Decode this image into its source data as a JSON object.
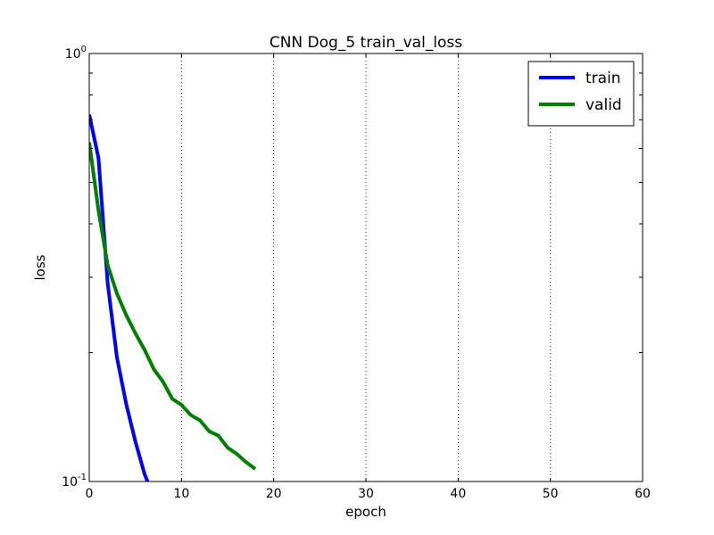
{
  "chart_data": {
    "type": "line",
    "title": "CNN Dog_5 train_val_loss",
    "xlabel": "epoch",
    "ylabel": "loss",
    "xlim": [
      0,
      60
    ],
    "ylim": [
      0.1,
      1.0
    ],
    "yscale": "log",
    "xticks": [
      0,
      10,
      20,
      30,
      40,
      50,
      60
    ],
    "xtick_labels": [
      "0",
      "10",
      "20",
      "30",
      "40",
      "50",
      "60"
    ],
    "yticks": [
      {
        "value": 0.1,
        "base": "10",
        "exp": "-1"
      },
      {
        "value": 1.0,
        "base": "10",
        "exp": "0"
      }
    ],
    "grid": "vertical dotted",
    "legend_position": "top-right",
    "series": [
      {
        "name": "train",
        "color": "#0000ff",
        "x": [
          0,
          1,
          2,
          3,
          4,
          5,
          6,
          7
        ],
        "y": [
          0.72,
          0.57,
          0.29,
          0.195,
          0.152,
          0.124,
          0.104,
          0.092
        ]
      },
      {
        "name": "valid",
        "color": "#008000",
        "x": [
          0,
          1,
          2,
          3,
          4,
          5,
          6,
          7,
          8,
          9,
          10,
          11,
          12,
          13,
          14,
          15,
          16,
          17,
          18
        ],
        "y": [
          0.62,
          0.43,
          0.32,
          0.275,
          0.245,
          0.222,
          0.203,
          0.183,
          0.171,
          0.156,
          0.151,
          0.143,
          0.139,
          0.131,
          0.128,
          0.12,
          0.116,
          0.111,
          0.107
        ]
      }
    ]
  }
}
